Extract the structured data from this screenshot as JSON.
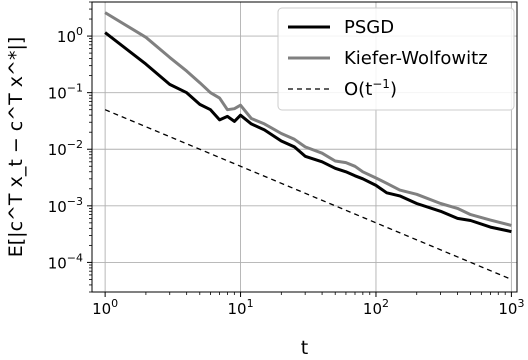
{
  "chart_data": {
    "type": "line",
    "xscale": "log",
    "yscale": "log",
    "xlim": [
      0.8,
      1100
    ],
    "ylim": [
      3e-05,
      4
    ],
    "xticks": [
      1,
      10,
      100,
      1000
    ],
    "xtick_labels": [
      "10^0",
      "10^1",
      "10^2",
      "10^3"
    ],
    "yticks": [
      0.0001,
      0.001,
      0.01,
      0.1,
      1
    ],
    "ytick_labels": [
      "10^-4",
      "10^-3",
      "10^-2",
      "10^-1",
      "10^0"
    ],
    "xlabel": "t",
    "ylabel": "E[|c^T x_t − c^T x^*|]",
    "grid": true,
    "legend": {
      "position": "top-right"
    },
    "series": [
      {
        "name": "PSGD",
        "color": "#000000",
        "style": "solid",
        "x": [
          1,
          2,
          3,
          4,
          5,
          6,
          7,
          8,
          9,
          10,
          12,
          15,
          20,
          25,
          30,
          40,
          50,
          60,
          70,
          80,
          100,
          120,
          150,
          200,
          300,
          400,
          500,
          700,
          1000
        ],
        "y": [
          1.15,
          0.32,
          0.14,
          0.1,
          0.062,
          0.05,
          0.033,
          0.038,
          0.031,
          0.04,
          0.028,
          0.022,
          0.014,
          0.011,
          0.0075,
          0.006,
          0.0046,
          0.004,
          0.0034,
          0.003,
          0.0023,
          0.0017,
          0.0015,
          0.0011,
          0.0008,
          0.0006,
          0.00055,
          0.00042,
          0.00035
        ]
      },
      {
        "name": "Kiefer-Wolfowitz",
        "color": "#808080",
        "style": "solid",
        "x": [
          1,
          2,
          3,
          4,
          5,
          6,
          7,
          8,
          9,
          10,
          12,
          15,
          20,
          25,
          30,
          40,
          50,
          60,
          70,
          80,
          100,
          120,
          150,
          200,
          300,
          400,
          500,
          700,
          1000
        ],
        "y": [
          2.6,
          0.95,
          0.42,
          0.24,
          0.15,
          0.1,
          0.08,
          0.05,
          0.052,
          0.06,
          0.035,
          0.028,
          0.019,
          0.015,
          0.011,
          0.0085,
          0.0062,
          0.0058,
          0.005,
          0.004,
          0.0031,
          0.0025,
          0.0019,
          0.0016,
          0.0011,
          0.0009,
          0.0007,
          0.00056,
          0.00045
        ]
      },
      {
        "name": "O(t^-1)",
        "color": "#000000",
        "style": "dashed",
        "x": [
          1,
          1000
        ],
        "y": [
          0.05,
          5e-05
        ]
      }
    ]
  }
}
